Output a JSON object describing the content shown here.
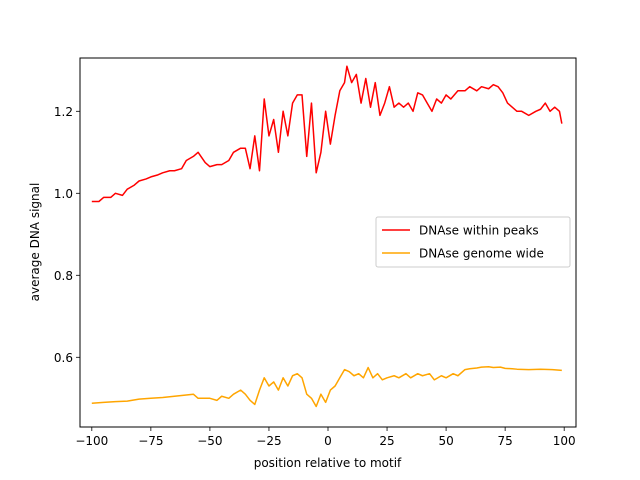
{
  "chart_data": {
    "type": "line",
    "title": "",
    "xlabel": "position relative to motif",
    "ylabel": "average DNA signal",
    "xlim": [
      -105,
      105
    ],
    "ylim": [
      0.43,
      1.33
    ],
    "xticks": [
      -100,
      -75,
      -50,
      -25,
      0,
      25,
      50,
      75,
      100
    ],
    "xtick_labels": [
      "−100",
      "−75",
      "−50",
      "−25",
      "0",
      "25",
      "50",
      "75",
      "100"
    ],
    "yticks": [
      0.6,
      0.8,
      1.0,
      1.2
    ],
    "ytick_labels": [
      "0.6",
      "0.8",
      "1.0",
      "1.2"
    ],
    "grid": false,
    "legend_position": "center-right",
    "series": [
      {
        "name": "DNAse within peaks",
        "color": "#ff0000",
        "points": [
          [
            -100,
            0.98
          ],
          [
            -97,
            0.98
          ],
          [
            -95,
            0.99
          ],
          [
            -92,
            0.99
          ],
          [
            -90,
            1.0
          ],
          [
            -87,
            0.995
          ],
          [
            -85,
            1.01
          ],
          [
            -82,
            1.02
          ],
          [
            -80,
            1.03
          ],
          [
            -77,
            1.035
          ],
          [
            -75,
            1.04
          ],
          [
            -72,
            1.045
          ],
          [
            -70,
            1.05
          ],
          [
            -67,
            1.055
          ],
          [
            -65,
            1.055
          ],
          [
            -62,
            1.06
          ],
          [
            -60,
            1.08
          ],
          [
            -57,
            1.09
          ],
          [
            -55,
            1.1
          ],
          [
            -52,
            1.075
          ],
          [
            -50,
            1.065
          ],
          [
            -47,
            1.07
          ],
          [
            -45,
            1.07
          ],
          [
            -42,
            1.08
          ],
          [
            -40,
            1.1
          ],
          [
            -37,
            1.11
          ],
          [
            -35,
            1.11
          ],
          [
            -33,
            1.06
          ],
          [
            -31,
            1.14
          ],
          [
            -29,
            1.055
          ],
          [
            -27,
            1.23
          ],
          [
            -25,
            1.14
          ],
          [
            -23,
            1.18
          ],
          [
            -21,
            1.1
          ],
          [
            -19,
            1.2
          ],
          [
            -17,
            1.14
          ],
          [
            -15,
            1.22
          ],
          [
            -13,
            1.24
          ],
          [
            -11,
            1.24
          ],
          [
            -9,
            1.09
          ],
          [
            -7,
            1.22
          ],
          [
            -5,
            1.05
          ],
          [
            -3,
            1.1
          ],
          [
            -1,
            1.2
          ],
          [
            1,
            1.12
          ],
          [
            3,
            1.19
          ],
          [
            5,
            1.25
          ],
          [
            7,
            1.27
          ],
          [
            8,
            1.31
          ],
          [
            10,
            1.27
          ],
          [
            12,
            1.29
          ],
          [
            14,
            1.22
          ],
          [
            16,
            1.28
          ],
          [
            18,
            1.21
          ],
          [
            20,
            1.27
          ],
          [
            22,
            1.19
          ],
          [
            24,
            1.22
          ],
          [
            26,
            1.26
          ],
          [
            28,
            1.21
          ],
          [
            30,
            1.22
          ],
          [
            32,
            1.21
          ],
          [
            34,
            1.22
          ],
          [
            36,
            1.2
          ],
          [
            38,
            1.245
          ],
          [
            40,
            1.24
          ],
          [
            42,
            1.22
          ],
          [
            44,
            1.2
          ],
          [
            46,
            1.23
          ],
          [
            48,
            1.22
          ],
          [
            50,
            1.24
          ],
          [
            52,
            1.23
          ],
          [
            55,
            1.25
          ],
          [
            58,
            1.25
          ],
          [
            60,
            1.26
          ],
          [
            63,
            1.25
          ],
          [
            65,
            1.26
          ],
          [
            68,
            1.255
          ],
          [
            70,
            1.265
          ],
          [
            72,
            1.26
          ],
          [
            74,
            1.245
          ],
          [
            76,
            1.22
          ],
          [
            78,
            1.21
          ],
          [
            80,
            1.2
          ],
          [
            82,
            1.2
          ],
          [
            85,
            1.19
          ],
          [
            88,
            1.2
          ],
          [
            90,
            1.205
          ],
          [
            92,
            1.22
          ],
          [
            94,
            1.2
          ],
          [
            96,
            1.21
          ],
          [
            98,
            1.2
          ],
          [
            99,
            1.17
          ]
        ]
      },
      {
        "name": "DNAse genome wide",
        "color": "#ffa500",
        "points": [
          [
            -100,
            0.488
          ],
          [
            -95,
            0.49
          ],
          [
            -90,
            0.492
          ],
          [
            -85,
            0.493
          ],
          [
            -80,
            0.498
          ],
          [
            -75,
            0.5
          ],
          [
            -70,
            0.502
          ],
          [
            -65,
            0.505
          ],
          [
            -60,
            0.508
          ],
          [
            -57,
            0.51
          ],
          [
            -55,
            0.5
          ],
          [
            -52,
            0.5
          ],
          [
            -50,
            0.5
          ],
          [
            -47,
            0.495
          ],
          [
            -45,
            0.505
          ],
          [
            -42,
            0.5
          ],
          [
            -40,
            0.51
          ],
          [
            -37,
            0.52
          ],
          [
            -35,
            0.51
          ],
          [
            -33,
            0.495
          ],
          [
            -31,
            0.485
          ],
          [
            -29,
            0.52
          ],
          [
            -27,
            0.55
          ],
          [
            -25,
            0.53
          ],
          [
            -23,
            0.54
          ],
          [
            -21,
            0.52
          ],
          [
            -19,
            0.55
          ],
          [
            -17,
            0.53
          ],
          [
            -15,
            0.555
          ],
          [
            -13,
            0.56
          ],
          [
            -11,
            0.55
          ],
          [
            -9,
            0.51
          ],
          [
            -7,
            0.5
          ],
          [
            -5,
            0.48
          ],
          [
            -3,
            0.51
          ],
          [
            -1,
            0.49
          ],
          [
            1,
            0.52
          ],
          [
            3,
            0.53
          ],
          [
            5,
            0.55
          ],
          [
            7,
            0.57
          ],
          [
            9,
            0.565
          ],
          [
            11,
            0.555
          ],
          [
            13,
            0.56
          ],
          [
            15,
            0.55
          ],
          [
            17,
            0.575
          ],
          [
            19,
            0.55
          ],
          [
            21,
            0.56
          ],
          [
            23,
            0.545
          ],
          [
            25,
            0.55
          ],
          [
            28,
            0.555
          ],
          [
            30,
            0.55
          ],
          [
            33,
            0.56
          ],
          [
            35,
            0.55
          ],
          [
            38,
            0.56
          ],
          [
            40,
            0.555
          ],
          [
            43,
            0.56
          ],
          [
            45,
            0.545
          ],
          [
            48,
            0.555
          ],
          [
            50,
            0.55
          ],
          [
            53,
            0.56
          ],
          [
            55,
            0.555
          ],
          [
            58,
            0.57
          ],
          [
            60,
            0.572
          ],
          [
            63,
            0.574
          ],
          [
            65,
            0.576
          ],
          [
            68,
            0.577
          ],
          [
            70,
            0.575
          ],
          [
            73,
            0.576
          ],
          [
            75,
            0.573
          ],
          [
            78,
            0.572
          ],
          [
            80,
            0.571
          ],
          [
            85,
            0.57
          ],
          [
            90,
            0.571
          ],
          [
            95,
            0.57
          ],
          [
            99,
            0.568
          ]
        ]
      }
    ]
  }
}
